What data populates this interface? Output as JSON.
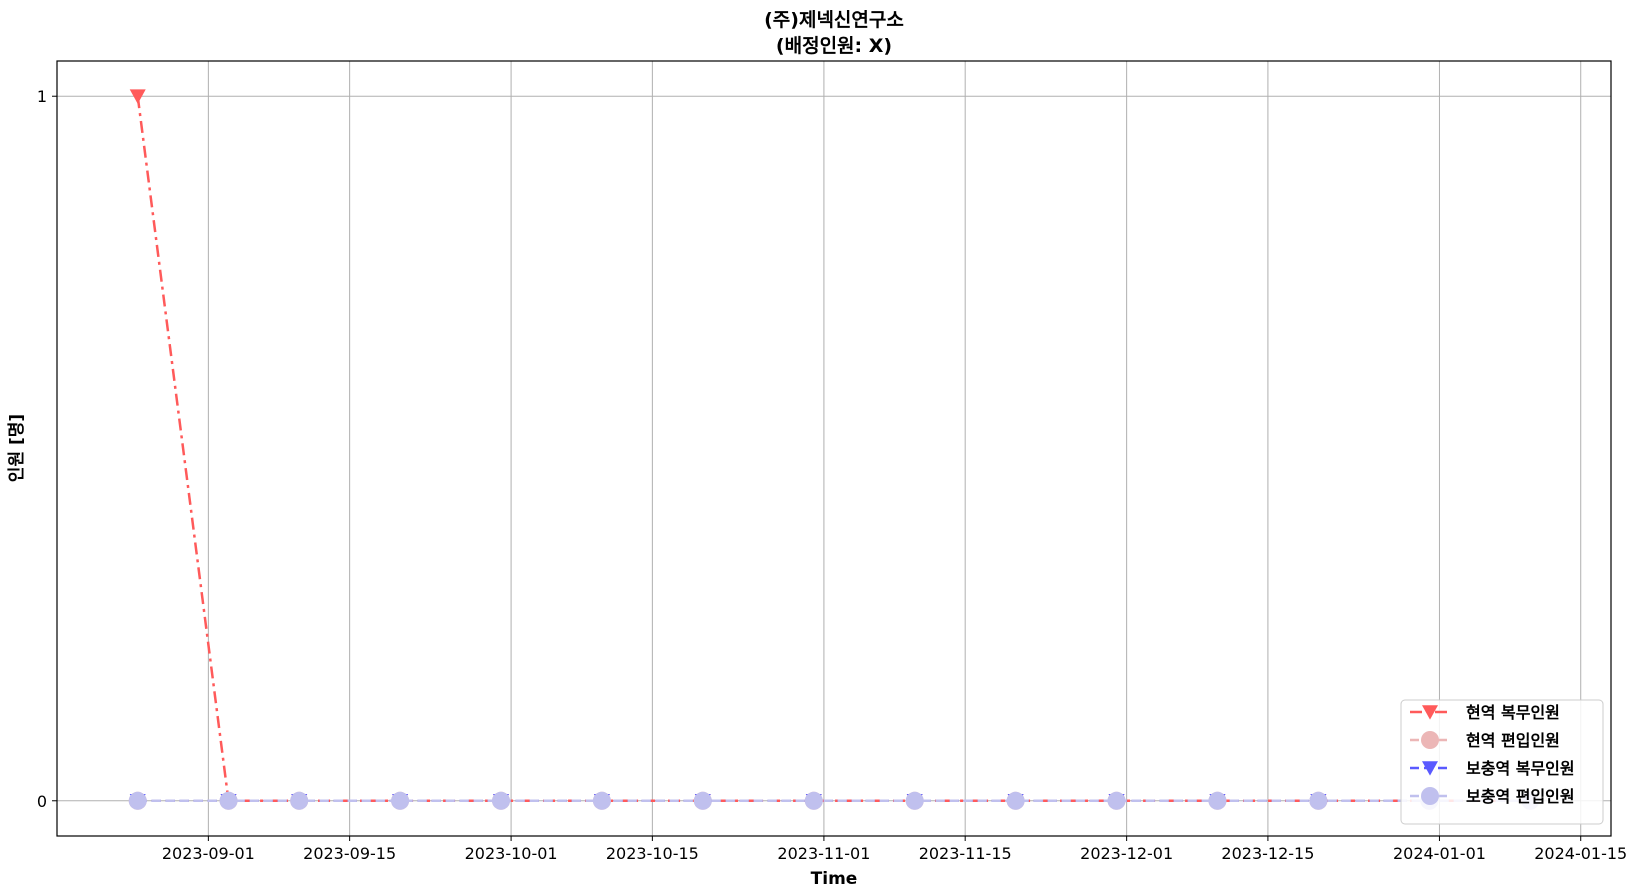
{
  "chart_data": {
    "type": "line",
    "title": "(주)제넥신연구소",
    "subtitle": "(배정인원:   X)",
    "xlabel": "Time",
    "ylabel": "인원  [명]",
    "xlim": [
      "2023-08-17",
      "2024-01-18"
    ],
    "ylim": [
      -0.05,
      1.05
    ],
    "y_ticks": [
      0,
      1
    ],
    "y_tick_labels": [
      "0",
      "1"
    ],
    "x_ticks": [
      "2023-09-01",
      "2023-09-15",
      "2023-10-01",
      "2023-10-15",
      "2023-11-01",
      "2023-11-15",
      "2023-12-01",
      "2023-12-15",
      "2024-01-01",
      "2024-01-15"
    ],
    "x_tick_labels": [
      "2023-09-01",
      "2023-09-15",
      "2023-10-01",
      "2023-10-15",
      "2023-11-01",
      "2023-11-15",
      "2023-12-01",
      "2023-12-15",
      "2024-01-01",
      "2024-01-15"
    ],
    "grid": true,
    "legend_position": "lower-right",
    "x": [
      "2023-08-25",
      "2023-09-03",
      "2023-09-10",
      "2023-09-20",
      "2023-09-30",
      "2023-10-10",
      "2023-10-20",
      "2023-10-31",
      "2023-11-10",
      "2023-11-20",
      "2023-11-30",
      "2023-12-10",
      "2023-12-20",
      "2023-12-31",
      "2024-01-10"
    ],
    "series": [
      {
        "name": "현역   복무인원",
        "color": "#ff5a5a",
        "marker": "triangle-down",
        "linestyle": "dashdot",
        "values": [
          1,
          0,
          0,
          0,
          0,
          0,
          0,
          0,
          0,
          0,
          0,
          0,
          0,
          0,
          0
        ]
      },
      {
        "name": "현역   편입인원",
        "color": "#ecb6b6",
        "marker": "circle",
        "linestyle": "dashed",
        "values": [
          0,
          0,
          0,
          0,
          0,
          0,
          0,
          0,
          0,
          0,
          0,
          0,
          0,
          0,
          0
        ]
      },
      {
        "name": "보충역   복무인원",
        "color": "#5a5aff",
        "marker": "triangle-down",
        "linestyle": "dashed",
        "values": [
          0,
          0,
          0,
          0,
          0,
          0,
          0,
          0,
          0,
          0,
          0,
          0,
          0,
          0,
          0
        ]
      },
      {
        "name": "보충역   편입인원",
        "color": "#c0c0ee",
        "marker": "circle",
        "linestyle": "dashed",
        "values": [
          0,
          0,
          0,
          0,
          0,
          0,
          0,
          0,
          0,
          0,
          0,
          0,
          0,
          0,
          0
        ]
      }
    ]
  }
}
